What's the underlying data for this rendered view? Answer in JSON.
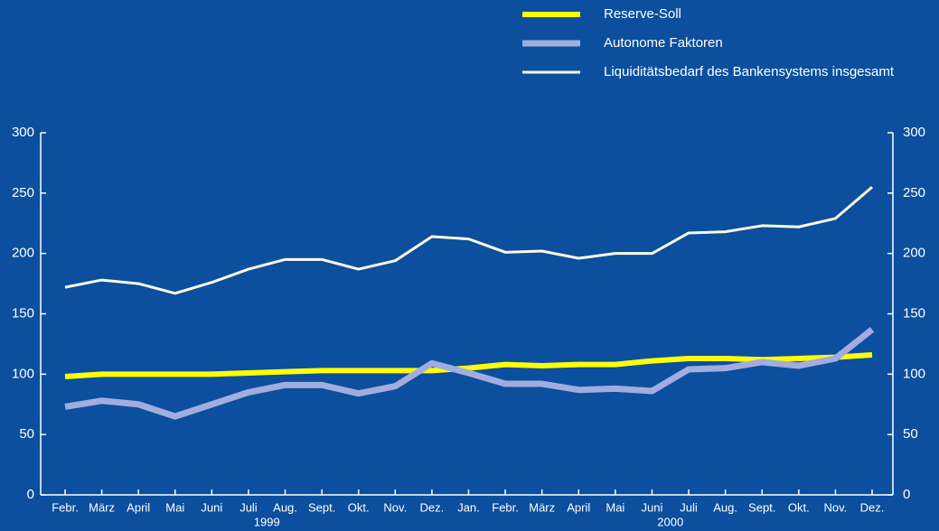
{
  "chart_data": {
    "type": "line",
    "categories": [
      "Febr.",
      "März",
      "April",
      "Mai",
      "Juni",
      "Juli",
      "Aug.",
      "Sept.",
      "Okt.",
      "Nov.",
      "Dez.",
      "Jan.",
      "Febr.",
      "März",
      "April",
      "Mai",
      "Juni",
      "Juli",
      "Aug.",
      "Sept.",
      "Okt.",
      "Nov.",
      "Dez."
    ],
    "years": [
      "1999",
      "2000"
    ],
    "series": [
      {
        "name": "Reserve-Soll",
        "color": "#ffff00",
        "values": [
          98,
          100,
          100,
          100,
          100,
          101,
          102,
          103,
          103,
          103,
          103,
          105,
          108,
          107,
          108,
          108,
          111,
          113,
          113,
          112,
          113,
          114,
          116
        ]
      },
      {
        "name": "Autonome Faktoren",
        "color": "#a3acdf",
        "values": [
          73,
          78,
          75,
          65,
          75,
          85,
          91,
          91,
          84,
          90,
          109,
          101,
          92,
          92,
          87,
          88,
          86,
          104,
          105,
          110,
          107,
          113,
          137
        ]
      },
      {
        "name": "Liquiditätsbedarf des Bankensystems insgesamt",
        "color": "#fffbe3",
        "values": [
          172,
          178,
          175,
          167,
          176,
          187,
          195,
          195,
          187,
          194,
          214,
          212,
          201,
          202,
          196,
          200,
          200,
          217,
          218,
          223,
          222,
          229,
          255
        ]
      }
    ],
    "ylim": [
      0,
      300
    ],
    "yticks": [
      0,
      50,
      100,
      150,
      200,
      250,
      300
    ],
    "y2lim": [
      0,
      300
    ],
    "y2ticks": [
      0,
      50,
      100,
      150,
      200,
      250,
      300
    ],
    "legend": "top-right"
  }
}
